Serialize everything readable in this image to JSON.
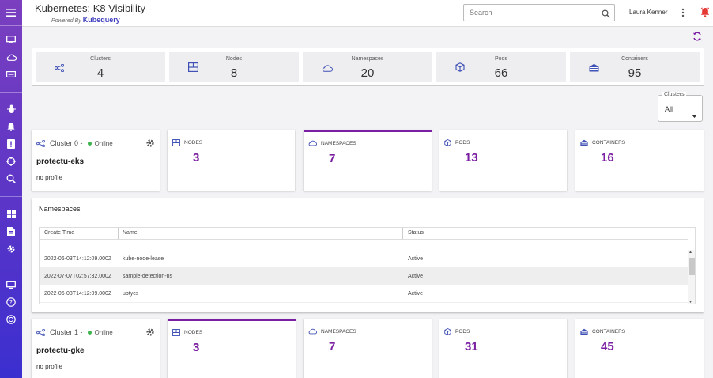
{
  "header": {
    "title": "Kubernetes: K8 Visibility",
    "powered_by": "Powered By",
    "brand": "Kubequery",
    "search_placeholder": "Search",
    "user_name": "Laura Kenner"
  },
  "summary": [
    {
      "label": "Clusters",
      "value": "4"
    },
    {
      "label": "Nodes",
      "value": "8"
    },
    {
      "label": "Namespaces",
      "value": "20"
    },
    {
      "label": "Pods",
      "value": "66"
    },
    {
      "label": "Containers",
      "value": "95"
    }
  ],
  "cluster_filter": {
    "label": "Clusters",
    "value": "All"
  },
  "clusters": [
    {
      "title": "Cluster 0 -",
      "status": "Online",
      "name": "protectu-eks",
      "profile": "no profile",
      "metrics": [
        {
          "label": "NODES",
          "value": "3"
        },
        {
          "label": "NAMESPACES",
          "value": "7"
        },
        {
          "label": "PODS",
          "value": "13"
        },
        {
          "label": "CONTAINERS",
          "value": "16"
        }
      ]
    },
    {
      "title": "Cluster 1 -",
      "status": "Online",
      "name": "protectu-gke",
      "profile": "no profile",
      "metrics": [
        {
          "label": "NODES",
          "value": "3"
        },
        {
          "label": "NAMESPACES",
          "value": "7"
        },
        {
          "label": "PODS",
          "value": "31"
        },
        {
          "label": "CONTAINERS",
          "value": "45"
        }
      ]
    }
  ],
  "namespaces": {
    "title": "Namespaces",
    "columns": [
      "Create Time",
      "Name",
      "Status"
    ],
    "rows": [
      {
        "create_time": "2022-06-03T14:12:09.000Z",
        "name": "kube-node-lease",
        "status": "Active"
      },
      {
        "create_time": "2022-07-07T02:57:32.000Z",
        "name": "sample-detection-ns",
        "status": "Active"
      },
      {
        "create_time": "2022-06-03T14:12:09.000Z",
        "name": "uptycs",
        "status": "Active"
      }
    ]
  },
  "colors": {
    "accent": "#7b1fa2",
    "online": "#3cb44b",
    "alert": "#e53935"
  }
}
